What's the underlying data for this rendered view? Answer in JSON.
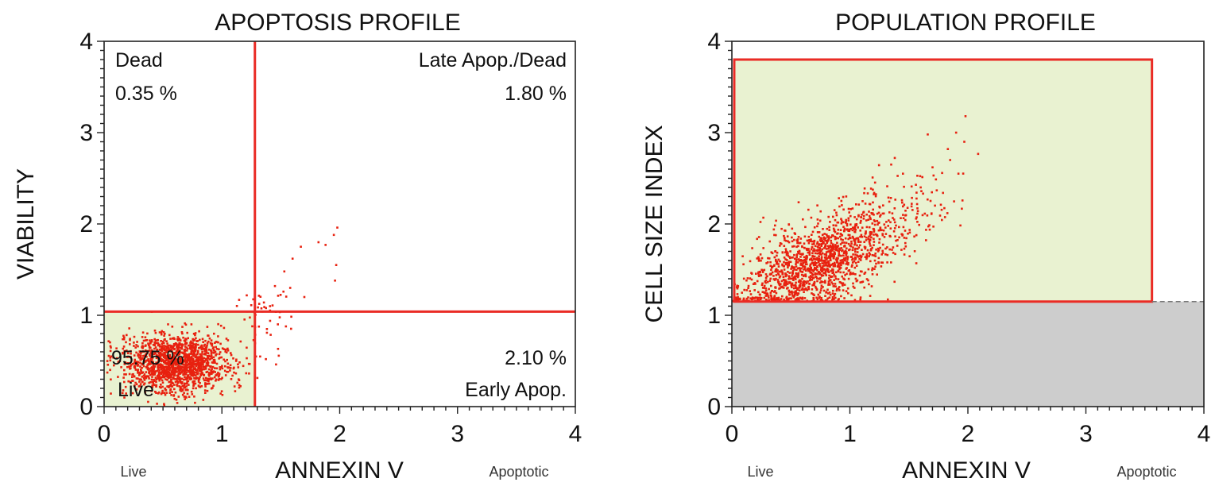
{
  "chart_data": [
    {
      "type": "scatter",
      "title": "APOPTOSIS PROFILE",
      "xlabel": "ANNEXIN V",
      "ylabel": "VIABILITY",
      "x_left_label": "Live",
      "x_right_label": "Apoptotic",
      "xlim": [
        0,
        4
      ],
      "ylim": [
        0,
        4
      ],
      "xticks": [
        "0",
        "1",
        "2",
        "3",
        "4"
      ],
      "yticks": [
        "0",
        "1",
        "2",
        "3",
        "4"
      ],
      "gates": {
        "x": 1.28,
        "y": 1.04
      },
      "quadrants": [
        {
          "name": "Dead",
          "percent": "0.35 %",
          "position": "top-left"
        },
        {
          "name": "Late Apop./Dead",
          "percent": "1.80 %",
          "position": "top-right"
        },
        {
          "name": "Live",
          "percent": "95.75 %",
          "position": "bottom-left"
        },
        {
          "name": "Early Apop.",
          "percent": "2.10 %",
          "position": "bottom-right"
        }
      ],
      "clusters": [
        {
          "cx": 0.62,
          "cy": 0.48,
          "sx": 0.22,
          "sy": 0.16,
          "n": 1500
        },
        {
          "cx": 1.38,
          "cy": 0.95,
          "sx": 0.12,
          "sy": 0.2,
          "n": 45
        }
      ],
      "outliers": [
        [
          1.53,
          1.48
        ],
        [
          1.6,
          1.62
        ],
        [
          1.67,
          1.75
        ],
        [
          1.82,
          1.8
        ],
        [
          1.88,
          1.77
        ],
        [
          1.95,
          1.88
        ],
        [
          1.98,
          1.96
        ],
        [
          1.97,
          1.55
        ],
        [
          1.96,
          1.38
        ],
        [
          1.58,
          1.3
        ],
        [
          1.45,
          1.32
        ],
        [
          1.7,
          1.2
        ]
      ]
    },
    {
      "type": "scatter",
      "title": "POPULATION PROFILE",
      "xlabel": "ANNEXIN V",
      "ylabel": "CELL SIZE INDEX",
      "x_left_label": "Live",
      "x_right_label": "Apoptotic",
      "xlim": [
        0,
        4
      ],
      "ylim": [
        0,
        4
      ],
      "xticks": [
        "0",
        "1",
        "2",
        "3",
        "4"
      ],
      "yticks": [
        "0",
        "1",
        "2",
        "3",
        "4"
      ],
      "gate": {
        "x0": 0.02,
        "x1": 3.56,
        "y0": 1.15,
        "y1": 3.8
      },
      "threshold_y": 1.15,
      "clusters": [
        {
          "cx": 0.7,
          "cy": 1.55,
          "sx": 0.3,
          "sy": 0.27,
          "n": 1300,
          "diag": 0.55
        },
        {
          "cx": 1.25,
          "cy": 1.95,
          "sx": 0.35,
          "sy": 0.28,
          "n": 240,
          "diag": 0.5
        }
      ],
      "outliers": [
        [
          1.83,
          2.82
        ],
        [
          1.9,
          3.0
        ],
        [
          1.97,
          2.9
        ],
        [
          1.85,
          2.7
        ],
        [
          1.98,
          3.18
        ],
        [
          1.66,
          2.98
        ],
        [
          1.7,
          2.62
        ],
        [
          1.92,
          2.55
        ],
        [
          1.6,
          2.4
        ],
        [
          1.45,
          2.55
        ],
        [
          1.35,
          2.65
        ]
      ]
    }
  ],
  "colors": {
    "points": "#e8210f",
    "gate_line": "#ea2b25",
    "gate_fill": "#e9f2d1",
    "excluded_fill": "#cdcdcd",
    "axis": "#222222"
  }
}
